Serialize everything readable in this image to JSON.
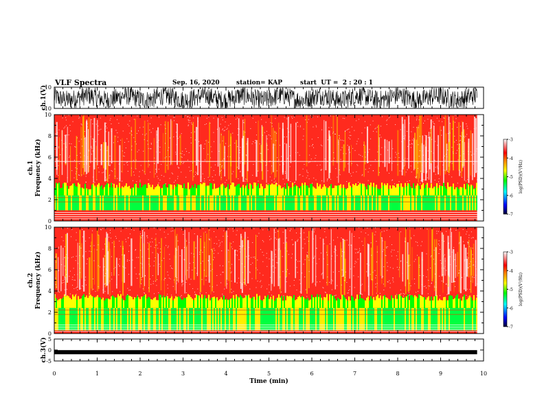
{
  "header": {
    "title": "VLF Spectra",
    "date": "Sep. 16, 2020",
    "station": "station= KAP",
    "start": "start  UT =  2 : 20 : 1"
  },
  "chart_data": {
    "type": "heatmap",
    "x_axis": {
      "label": "Time  (min)",
      "range": [
        0,
        10
      ],
      "ticks": [
        "0",
        "1",
        "2",
        "3",
        "4",
        "5",
        "6",
        "7",
        "8",
        "9",
        "10"
      ]
    },
    "panels": [
      {
        "name": "ch1-waveform",
        "type": "line",
        "ylabel": "ch.1(V)",
        "yticks": [
          "10",
          "-10"
        ],
        "ylim": [
          -10,
          10
        ]
      },
      {
        "name": "ch1-spectrogram",
        "type": "heatmap",
        "ylabel": "ch.1\nFrequency  (kHz)",
        "yticks": [
          "0",
          "2",
          "4",
          "6",
          "8",
          "10"
        ],
        "ylim": [
          0,
          10
        ],
        "colorbar": {
          "label": "log(PSD)(V²/Hz)",
          "ticks": [
            "-3",
            "-4",
            "-5",
            "-6",
            "-7"
          ],
          "range": [
            -7,
            -3
          ]
        }
      },
      {
        "name": "ch2-spectrogram",
        "type": "heatmap",
        "ylabel": "ch.2\nFrequency  (kHz)",
        "yticks": [
          "0",
          "2",
          "4",
          "6",
          "8",
          "10"
        ],
        "ylim": [
          0,
          10
        ],
        "colorbar": {
          "label": "log(PSD)(V²/Hz)",
          "ticks": [
            "-3",
            "-4",
            "-5",
            "-6",
            "-7"
          ],
          "range": [
            -7,
            -3
          ]
        }
      },
      {
        "name": "ch3-waveform",
        "type": "line",
        "ylabel": "ch.3(V)",
        "yticks": [
          "5",
          "0",
          "-5"
        ],
        "ylim": [
          -5,
          5
        ]
      }
    ],
    "data_end_min": 9.85,
    "colormap": [
      "#000033",
      "#0000ff",
      "#00ffff",
      "#00ff00",
      "#ffff00",
      "#ff8000",
      "#ff0000",
      "#ffffff"
    ]
  }
}
